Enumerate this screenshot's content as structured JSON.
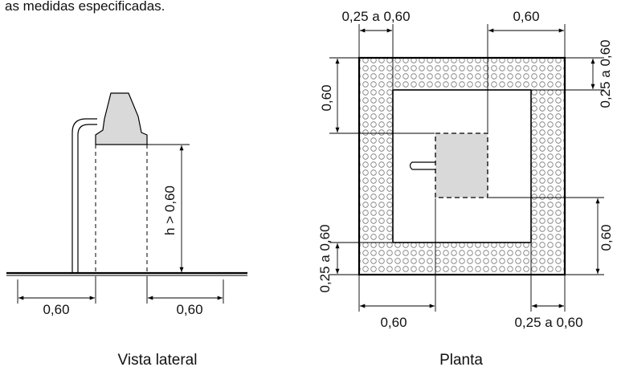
{
  "header_fragment": "as medidas especificadas.",
  "left_view": {
    "caption": "Vista lateral",
    "height_label": "h > 0,60",
    "left_dim": "0,60",
    "right_dim": "0,60"
  },
  "right_view": {
    "caption": "Planta",
    "top_left_dim": "0,25 a 0,60",
    "top_right_dim": "0,60",
    "right_top_dim": "0,25 a 0,60",
    "left_upper_dim": "0,60",
    "left_lower_dim": "0,25 a 0,60",
    "right_lower_dim": "0,60",
    "bottom_left_dim": "0,60",
    "bottom_right_dim": "0,25 a 0,60"
  },
  "colors": {
    "fill_gray": "#d9d9d9",
    "line": "#000000",
    "dot_stroke": "#777777"
  }
}
